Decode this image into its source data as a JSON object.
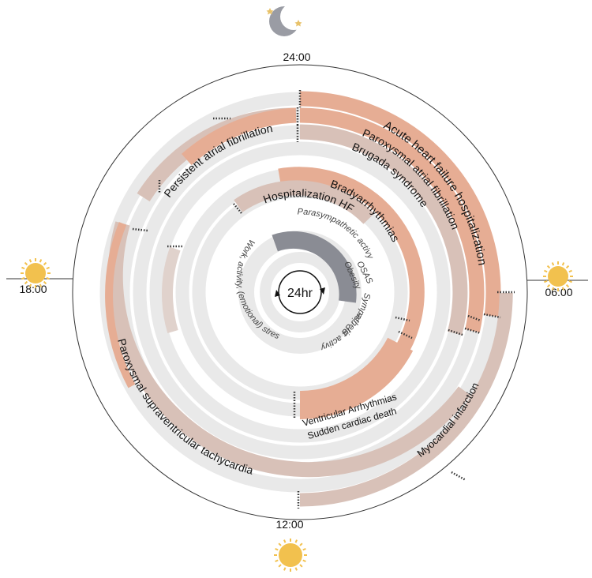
{
  "times": {
    "midnight": "24:00",
    "morning": "06:00",
    "noon": "12:00",
    "evening": "18:00"
  },
  "center": {
    "label": "24hr"
  },
  "icons": {
    "night": "moon-and-stars-icon",
    "day": "sun-icon"
  },
  "colors": {
    "peak": "#e6ad94",
    "moderate": "#d8c1b8",
    "track": "#e9e9e9",
    "core": "#8a8c94"
  },
  "inner_factors": {
    "sympathetic_night": "Parasympathetic activy",
    "osas": "OSAS",
    "obesity": "Obesity",
    "sympathetic_morning": "Sympathetic activy",
    "bp_rise": "BP rise",
    "work_stress": "Work, activity, (emotional) stress"
  },
  "conditions": {
    "acute_hf": "Acute heart failure hospitalization",
    "paroxysmal_af": "Paroxysmal atrial fibrillation",
    "brugada": "Brugada syndrome",
    "bradyarrhythmias": "Bradyarrhythmias",
    "hospitalization_hf": "Hospitalization HF",
    "persistent_af": "Persistent atrial fibrillation",
    "va_line1": "Ventricular Arrhythmias",
    "va_line2": "Sudden cardiac death",
    "psvt": "Paroxysmal supraventricular tachycardia",
    "mi": "Myocardial infarction"
  }
}
